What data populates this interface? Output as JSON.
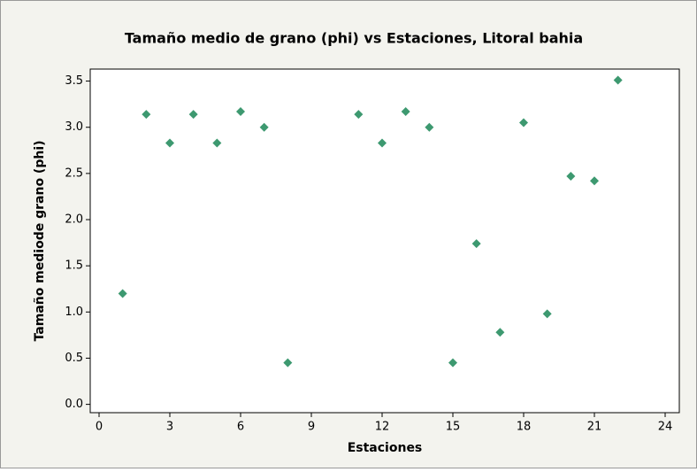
{
  "chart_data": {
    "type": "scatter",
    "title": "Tamaño medio de grano (phi) vs Estaciones, Litoral bahia",
    "xlabel": "Estaciones",
    "ylabel": "Tamaño mediode grano (phi)",
    "x": [
      1,
      2,
      3,
      4,
      5,
      6,
      7,
      8,
      11,
      12,
      13,
      14,
      15,
      16,
      17,
      18,
      19,
      20,
      21,
      22
    ],
    "series": [
      {
        "color": "#3d9970",
        "values": [
          1.2,
          3.14,
          2.83,
          3.14,
          2.83,
          3.17,
          3.0,
          0.45,
          3.14,
          2.83,
          3.17,
          3.0,
          0.45,
          1.74,
          0.78,
          3.05,
          0.98,
          2.47,
          2.42,
          3.51
        ]
      }
    ],
    "xlim": [
      -0.375,
      24.6
    ],
    "ylim": [
      -0.09,
      3.63
    ],
    "xticks": [
      0,
      3,
      6,
      9,
      12,
      15,
      18,
      21,
      24
    ],
    "yticks": [
      {
        "value": 0,
        "label": "0.0"
      },
      {
        "value": 0.5,
        "label": "0.5"
      },
      {
        "value": 1,
        "label": "1.0"
      },
      {
        "value": 1.5,
        "label": "1.5"
      },
      {
        "value": 2,
        "label": "2.0"
      },
      {
        "value": 2.5,
        "label": "2.5"
      },
      {
        "value": 3,
        "label": "3.0"
      },
      {
        "value": 3.5,
        "label": "3.5"
      }
    ]
  }
}
